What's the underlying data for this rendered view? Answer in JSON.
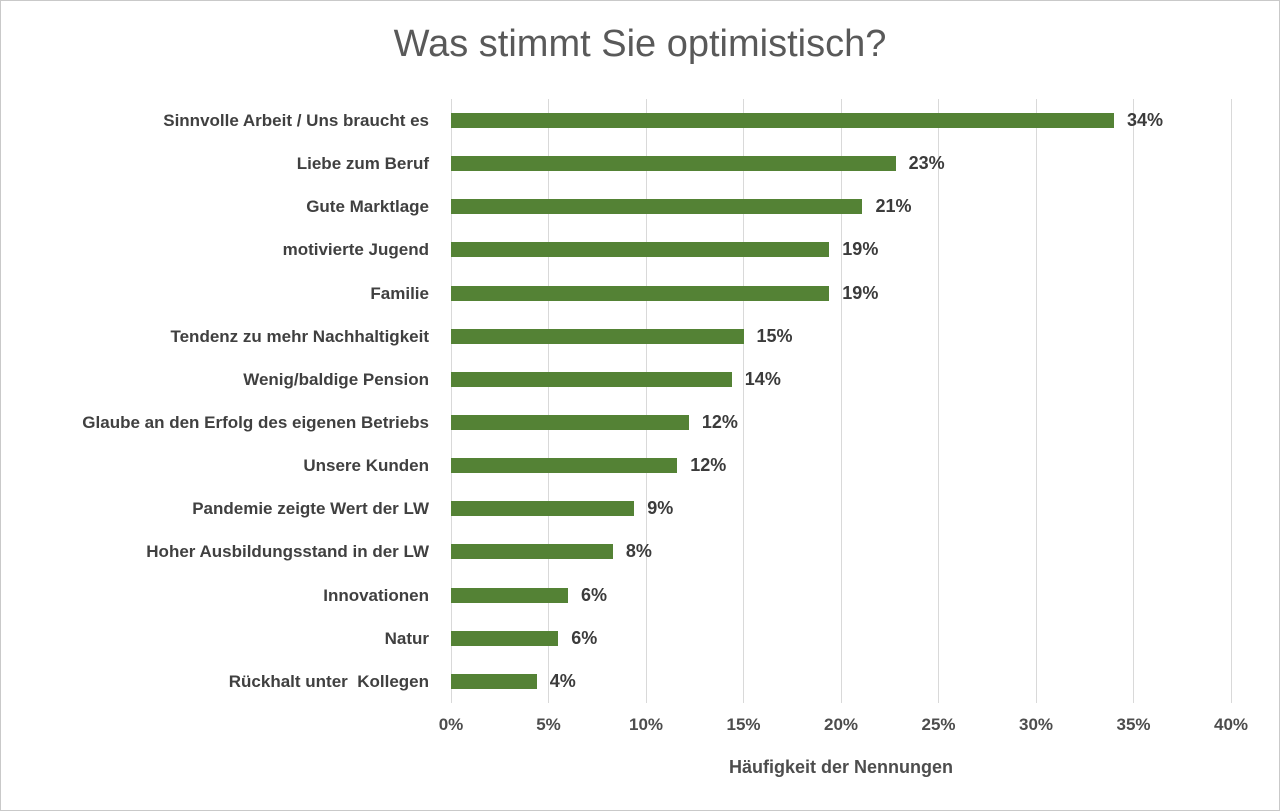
{
  "page": {
    "background_color": "#ffffff",
    "border_color": "#c9c9c9"
  },
  "chart_data": {
    "type": "bar",
    "orientation": "horizontal",
    "title": "Was stimmt Sie optimistisch?",
    "xlabel": "Häufigkeit der Nennungen",
    "ylabel": "",
    "xlim": [
      0,
      40
    ],
    "x_tick_step": 5,
    "x_ticks": [
      "0%",
      "5%",
      "10%",
      "15%",
      "20%",
      "25%",
      "30%",
      "35%",
      "40%"
    ],
    "grid": true,
    "legend": false,
    "bar_color": "#548235",
    "gridline_color": "#d9d9d9",
    "title_color": "#595959",
    "label_color": "#404040",
    "categories": [
      "Sinnvolle Arbeit / Uns braucht es",
      "Liebe zum Beruf",
      "Gute Marktlage",
      "motivierte Jugend",
      "Familie",
      "Tendenz zu mehr Nachhaltigkeit",
      "Wenig/baldige Pension",
      "Glaube an den Erfolg des eigenen Betriebs",
      "Unsere Kunden",
      "Pandemie zeigte Wert der LW",
      "Hoher Ausbildungsstand in der LW",
      "Innovationen",
      "Natur",
      "Rückhalt unter  Kollegen"
    ],
    "values": [
      34,
      23,
      21,
      19,
      19,
      15,
      14,
      12,
      12,
      9,
      8,
      6,
      6,
      4
    ],
    "data_labels": [
      "34%",
      "23%",
      "21%",
      "19%",
      "19%",
      "15%",
      "14%",
      "12%",
      "12%",
      "9%",
      "8%",
      "6%",
      "6%",
      "4%"
    ],
    "bar_lengths_pct": [
      34.0,
      22.8,
      21.1,
      19.4,
      19.4,
      15.0,
      14.4,
      12.2,
      11.6,
      9.4,
      8.3,
      6.0,
      5.5,
      4.4
    ]
  }
}
